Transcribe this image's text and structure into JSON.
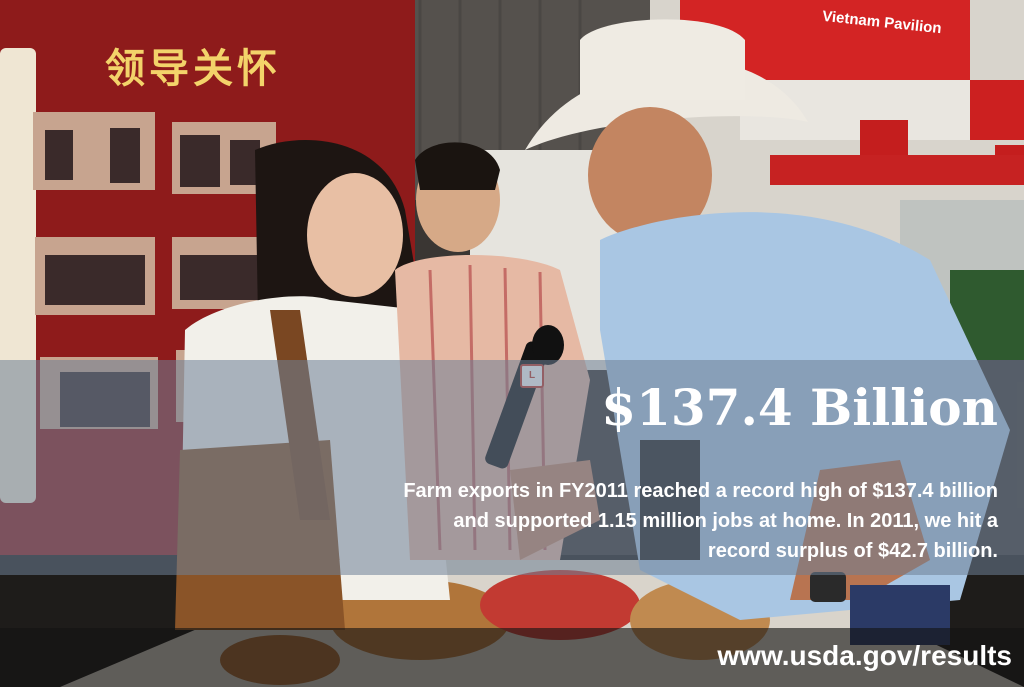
{
  "scene": {
    "banner_title": "领导关怀",
    "booth_sign": "Vietnam Pavilion",
    "mic_flag": "L"
  },
  "stat": {
    "headline": "$137.4 Billion",
    "caption_lines": [
      "Farm exports in FY2011 reached a record high of $137.4 billion",
      "and supported 1.15 million jobs at home.  In 2011, we hit a",
      "record surplus of $42.7 billion."
    ]
  },
  "footer": {
    "url": "www.usda.gov/results"
  },
  "colors": {
    "banner_red": "#8e1b1b",
    "banner_gold": "#f3d36a",
    "overlay_blue": "#6e8096",
    "shirt_blue": "#a9c6e3"
  },
  "icons": {
    "microphone": "microphone-icon"
  }
}
